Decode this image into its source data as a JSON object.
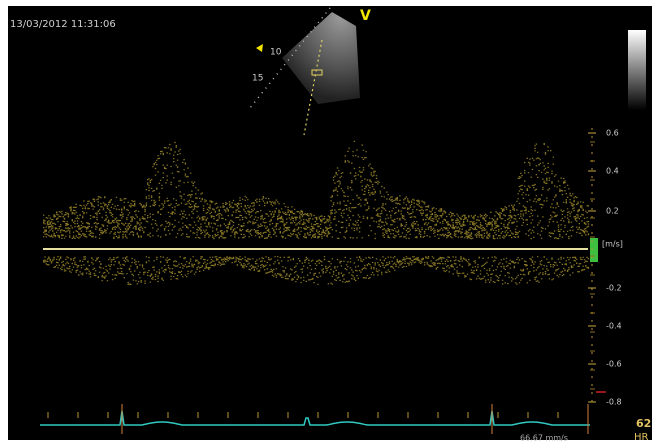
{
  "header": {
    "timestamp": "13/03/2012 11:31:06"
  },
  "probe": {
    "marker": "V",
    "depth_labels": [
      "10",
      "15"
    ]
  },
  "scale": {
    "unit": "[m/s]",
    "ticks": [
      "0.6",
      "0.4",
      "0.2",
      "-0.2",
      "-0.4",
      "-0.6",
      "-0.8"
    ]
  },
  "heart_rate": {
    "value": "62",
    "label": "HR"
  },
  "sweep_speed": "66.67 mm/s"
}
